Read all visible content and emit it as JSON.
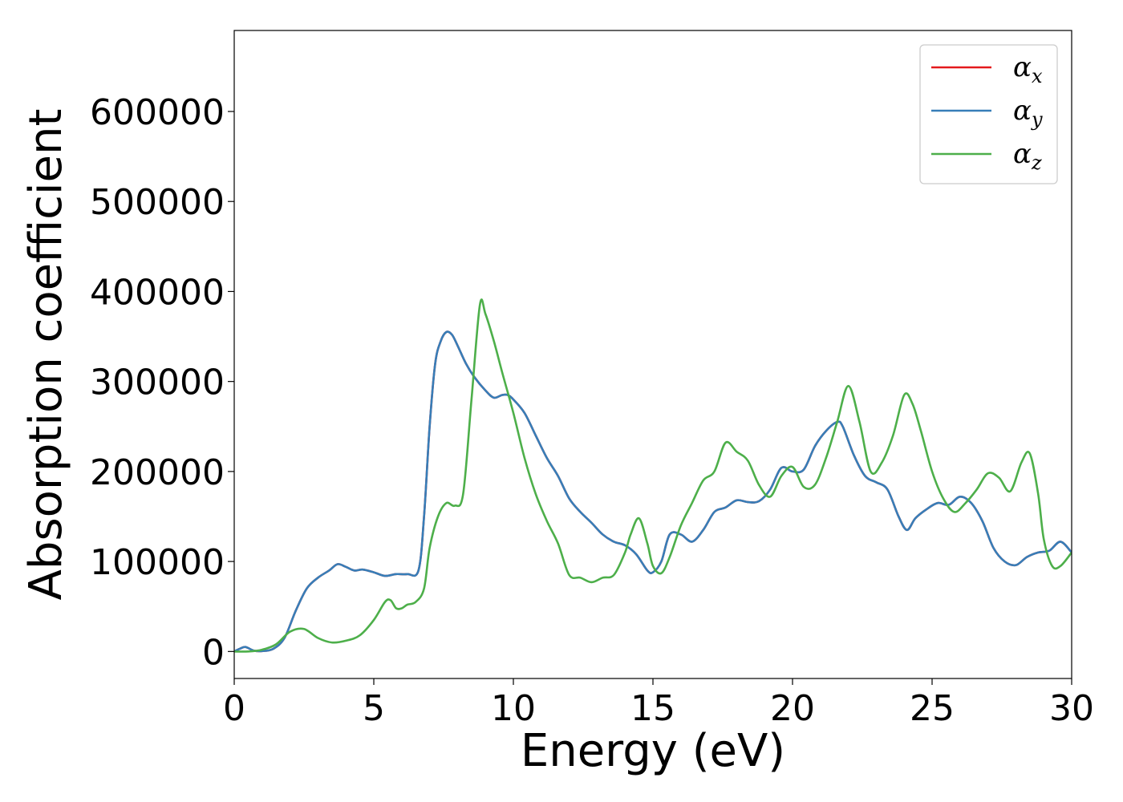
{
  "chart_data": {
    "type": "line",
    "title": "",
    "xlabel": "Energy (eV)",
    "ylabel": "Absorption coefficient",
    "xlim": [
      0,
      30
    ],
    "ylim": [
      -30000,
      690000
    ],
    "xticks": [
      0,
      5,
      10,
      15,
      20,
      25,
      30
    ],
    "yticks": [
      0,
      100000,
      200000,
      300000,
      400000,
      500000,
      600000
    ],
    "grid": false,
    "legend_position": "top-right",
    "series": [
      {
        "name": "α",
        "subscript": "x",
        "color": "#e41a1c",
        "x": [
          0,
          0.2,
          0.4,
          0.7,
          1.0,
          1.4,
          1.8,
          2.2,
          2.6,
          3.0,
          3.4,
          3.7,
          4.0,
          4.3,
          4.6,
          5.0,
          5.4,
          5.8,
          6.2,
          6.6,
          6.8,
          7.0,
          7.2,
          7.4,
          7.6,
          7.8,
          8.0,
          8.3,
          8.6,
          9.0,
          9.3,
          9.6,
          9.8,
          10.0,
          10.4,
          10.8,
          11.2,
          11.6,
          12.0,
          12.4,
          12.8,
          13.2,
          13.6,
          14.0,
          14.4,
          14.8,
          15.0,
          15.3,
          15.6,
          16.0,
          16.4,
          16.8,
          17.2,
          17.6,
          18.0,
          18.4,
          18.8,
          19.2,
          19.6,
          20.0,
          20.4,
          20.8,
          21.2,
          21.6,
          21.8,
          22.2,
          22.6,
          23.0,
          23.4,
          23.8,
          24.1,
          24.4,
          24.8,
          25.2,
          25.6,
          26.0,
          26.4,
          26.8,
          27.2,
          27.6,
          28.0,
          28.4,
          28.8,
          29.2,
          29.6,
          30.0
        ],
        "values": [
          0,
          3000,
          5000,
          1000,
          500,
          3000,
          15000,
          45000,
          70000,
          82000,
          90000,
          97000,
          94000,
          90000,
          91000,
          88000,
          84000,
          86000,
          86000,
          90000,
          150000,
          250000,
          320000,
          345000,
          355000,
          352000,
          340000,
          320000,
          305000,
          290000,
          282000,
          285000,
          285000,
          280000,
          265000,
          240000,
          215000,
          195000,
          170000,
          155000,
          143000,
          130000,
          122000,
          118000,
          108000,
          90000,
          88000,
          100000,
          130000,
          130000,
          122000,
          135000,
          155000,
          160000,
          168000,
          166000,
          167000,
          180000,
          204000,
          200000,
          202000,
          228000,
          245000,
          255000,
          250000,
          218000,
          195000,
          188000,
          180000,
          150000,
          135000,
          148000,
          158000,
          165000,
          163000,
          172000,
          165000,
          145000,
          115000,
          100000,
          96000,
          105000,
          110000,
          112000,
          122000,
          110000
        ]
      },
      {
        "name": "α",
        "subscript": "y",
        "color": "#377eb8",
        "x": [
          0,
          0.2,
          0.4,
          0.7,
          1.0,
          1.4,
          1.8,
          2.2,
          2.6,
          3.0,
          3.4,
          3.7,
          4.0,
          4.3,
          4.6,
          5.0,
          5.4,
          5.8,
          6.2,
          6.6,
          6.8,
          7.0,
          7.2,
          7.4,
          7.6,
          7.8,
          8.0,
          8.3,
          8.6,
          9.0,
          9.3,
          9.6,
          9.8,
          10.0,
          10.4,
          10.8,
          11.2,
          11.6,
          12.0,
          12.4,
          12.8,
          13.2,
          13.6,
          14.0,
          14.4,
          14.8,
          15.0,
          15.3,
          15.6,
          16.0,
          16.4,
          16.8,
          17.2,
          17.6,
          18.0,
          18.4,
          18.8,
          19.2,
          19.6,
          20.0,
          20.4,
          20.8,
          21.2,
          21.6,
          21.8,
          22.2,
          22.6,
          23.0,
          23.4,
          23.8,
          24.1,
          24.4,
          24.8,
          25.2,
          25.6,
          26.0,
          26.4,
          26.8,
          27.2,
          27.6,
          28.0,
          28.4,
          28.8,
          29.2,
          29.6,
          30.0
        ],
        "values": [
          0,
          3000,
          5000,
          1000,
          500,
          3000,
          15000,
          45000,
          70000,
          82000,
          90000,
          97000,
          94000,
          90000,
          91000,
          88000,
          84000,
          86000,
          86000,
          90000,
          150000,
          250000,
          320000,
          345000,
          355000,
          352000,
          340000,
          320000,
          305000,
          290000,
          282000,
          285000,
          285000,
          280000,
          265000,
          240000,
          215000,
          195000,
          170000,
          155000,
          143000,
          130000,
          122000,
          118000,
          108000,
          90000,
          88000,
          100000,
          130000,
          130000,
          122000,
          135000,
          155000,
          160000,
          168000,
          166000,
          167000,
          180000,
          204000,
          200000,
          202000,
          228000,
          245000,
          255000,
          250000,
          218000,
          195000,
          188000,
          180000,
          150000,
          135000,
          148000,
          158000,
          165000,
          163000,
          172000,
          165000,
          145000,
          115000,
          100000,
          96000,
          105000,
          110000,
          112000,
          122000,
          110000
        ]
      },
      {
        "name": "α",
        "subscript": "z",
        "color": "#4daf4a",
        "x": [
          0,
          0.5,
          1.0,
          1.5,
          2.0,
          2.5,
          3.0,
          3.5,
          4.0,
          4.5,
          5.0,
          5.4,
          5.6,
          5.8,
          6.0,
          6.2,
          6.5,
          6.8,
          7.0,
          7.3,
          7.6,
          7.9,
          8.2,
          8.5,
          8.8,
          9.0,
          9.3,
          9.6,
          10.0,
          10.4,
          10.8,
          11.2,
          11.6,
          12.0,
          12.4,
          12.8,
          13.2,
          13.6,
          14.0,
          14.2,
          14.5,
          14.8,
          15.0,
          15.3,
          15.6,
          16.0,
          16.4,
          16.8,
          17.2,
          17.6,
          18.0,
          18.4,
          18.8,
          19.2,
          19.6,
          20.0,
          20.4,
          20.8,
          21.2,
          21.6,
          22.0,
          22.4,
          22.8,
          23.2,
          23.6,
          24.0,
          24.3,
          24.6,
          25.0,
          25.4,
          25.8,
          26.2,
          26.6,
          27.0,
          27.4,
          27.8,
          28.2,
          28.5,
          28.8,
          29.0,
          29.3,
          29.6,
          30.0
        ],
        "values": [
          0,
          0,
          2000,
          8000,
          22000,
          25000,
          15000,
          10000,
          12000,
          18000,
          35000,
          55000,
          57000,
          48000,
          48000,
          52000,
          55000,
          70000,
          115000,
          150000,
          165000,
          162000,
          175000,
          280000,
          385000,
          375000,
          345000,
          310000,
          265000,
          215000,
          175000,
          145000,
          120000,
          85000,
          82000,
          77000,
          82000,
          85000,
          110000,
          130000,
          148000,
          120000,
          95000,
          87000,
          105000,
          140000,
          165000,
          190000,
          200000,
          232000,
          222000,
          212000,
          185000,
          172000,
          195000,
          205000,
          183000,
          185000,
          215000,
          255000,
          295000,
          255000,
          200000,
          210000,
          240000,
          285000,
          275000,
          245000,
          200000,
          170000,
          155000,
          165000,
          180000,
          198000,
          193000,
          178000,
          210000,
          220000,
          175000,
          125000,
          95000,
          95000,
          110000
        ]
      }
    ]
  }
}
